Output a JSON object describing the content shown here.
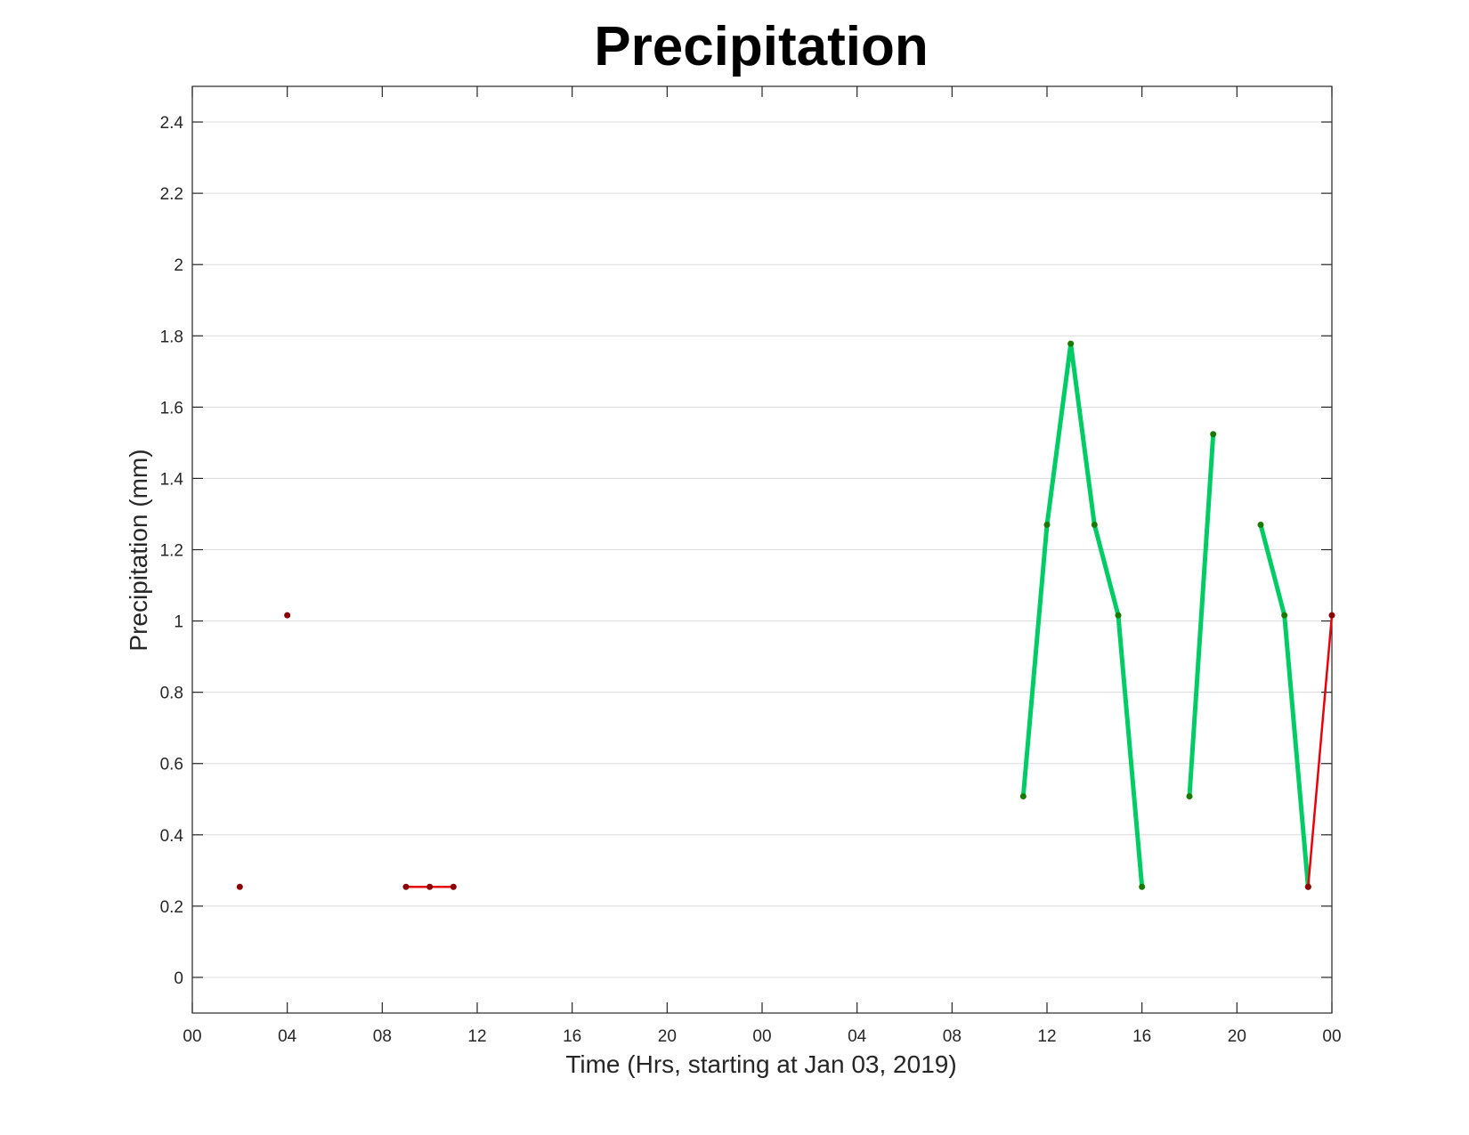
{
  "chart_data": {
    "type": "line",
    "title": "Precipitation",
    "xlabel": "Time (Hrs, starting at Jan 03, 2019)",
    "ylabel": "Precipitation (mm)",
    "xlim": [
      "2019-01-03 00:00",
      "2019-01-05 00:00"
    ],
    "ylim": [
      -0.1,
      2.5
    ],
    "yticks": [
      0,
      0.2,
      0.4,
      0.6,
      0.8,
      1,
      1.2,
      1.4,
      1.6,
      1.8,
      2,
      2.2,
      2.4
    ],
    "xticks": [
      {
        "time": "2019-01-03 00:00",
        "label": "00"
      },
      {
        "time": "2019-01-03 04:00",
        "label": "04"
      },
      {
        "time": "2019-01-03 08:00",
        "label": "08"
      },
      {
        "time": "2019-01-03 12:00",
        "label": "12"
      },
      {
        "time": "2019-01-03 16:00",
        "label": "16"
      },
      {
        "time": "2019-01-03 20:00",
        "label": "20"
      },
      {
        "time": "2019-01-04 00:00",
        "label": "00"
      },
      {
        "time": "2019-01-04 04:00",
        "label": "04"
      },
      {
        "time": "2019-01-04 08:00",
        "label": "08"
      },
      {
        "time": "2019-01-04 12:00",
        "label": "12"
      },
      {
        "time": "2019-01-04 16:00",
        "label": "16"
      },
      {
        "time": "2019-01-04 20:00",
        "label": "20"
      },
      {
        "time": "2019-01-05 00:00",
        "label": "00"
      }
    ],
    "grid": "horizontal",
    "series": [
      {
        "color": "#e8000b",
        "line_width": "thin",
        "marker_color": "#8b0000",
        "points": [
          {
            "time": "2019-01-03 02:00",
            "value": 0.254
          },
          {
            "time": "2019-01-03 04:00",
            "value": 1.016
          }
        ],
        "connected": false
      },
      {
        "color": "#e8000b",
        "line_width": "thin",
        "marker_color": "#8b0000",
        "points": [
          {
            "time": "2019-01-03 09:00",
            "value": 0.254
          },
          {
            "time": "2019-01-03 10:00",
            "value": 0.254
          },
          {
            "time": "2019-01-03 11:00",
            "value": 0.254
          }
        ],
        "connected": true
      },
      {
        "color": "#00cc66",
        "line_width": "thick",
        "marker_color": "#1a7a00",
        "points": [
          {
            "time": "2019-01-04 11:00",
            "value": 0.508
          },
          {
            "time": "2019-01-04 12:00",
            "value": 1.27
          },
          {
            "time": "2019-01-04 13:00",
            "value": 1.778
          },
          {
            "time": "2019-01-04 14:00",
            "value": 1.27
          },
          {
            "time": "2019-01-04 15:00",
            "value": 1.016
          },
          {
            "time": "2019-01-04 16:00",
            "value": 0.254
          }
        ],
        "connected": true
      },
      {
        "color": "#00cc66",
        "line_width": "thick",
        "marker_color": "#1a7a00",
        "points": [
          {
            "time": "2019-01-04 18:00",
            "value": 0.508
          },
          {
            "time": "2019-01-04 19:00",
            "value": 1.524
          }
        ],
        "connected": true
      },
      {
        "color": "#00cc66",
        "line_width": "thick",
        "marker_color": "#1a7a00",
        "points": [
          {
            "time": "2019-01-04 21:00",
            "value": 1.27
          },
          {
            "time": "2019-01-04 22:00",
            "value": 1.016
          },
          {
            "time": "2019-01-04 23:00",
            "value": 0.254
          }
        ],
        "connected": true
      },
      {
        "color": "#e8000b",
        "line_width": "thin",
        "marker_color": "#8b0000",
        "points": [
          {
            "time": "2019-01-04 23:00",
            "value": 0.254
          },
          {
            "time": "2019-01-05 00:00",
            "value": 1.016
          }
        ],
        "connected": true
      }
    ]
  }
}
